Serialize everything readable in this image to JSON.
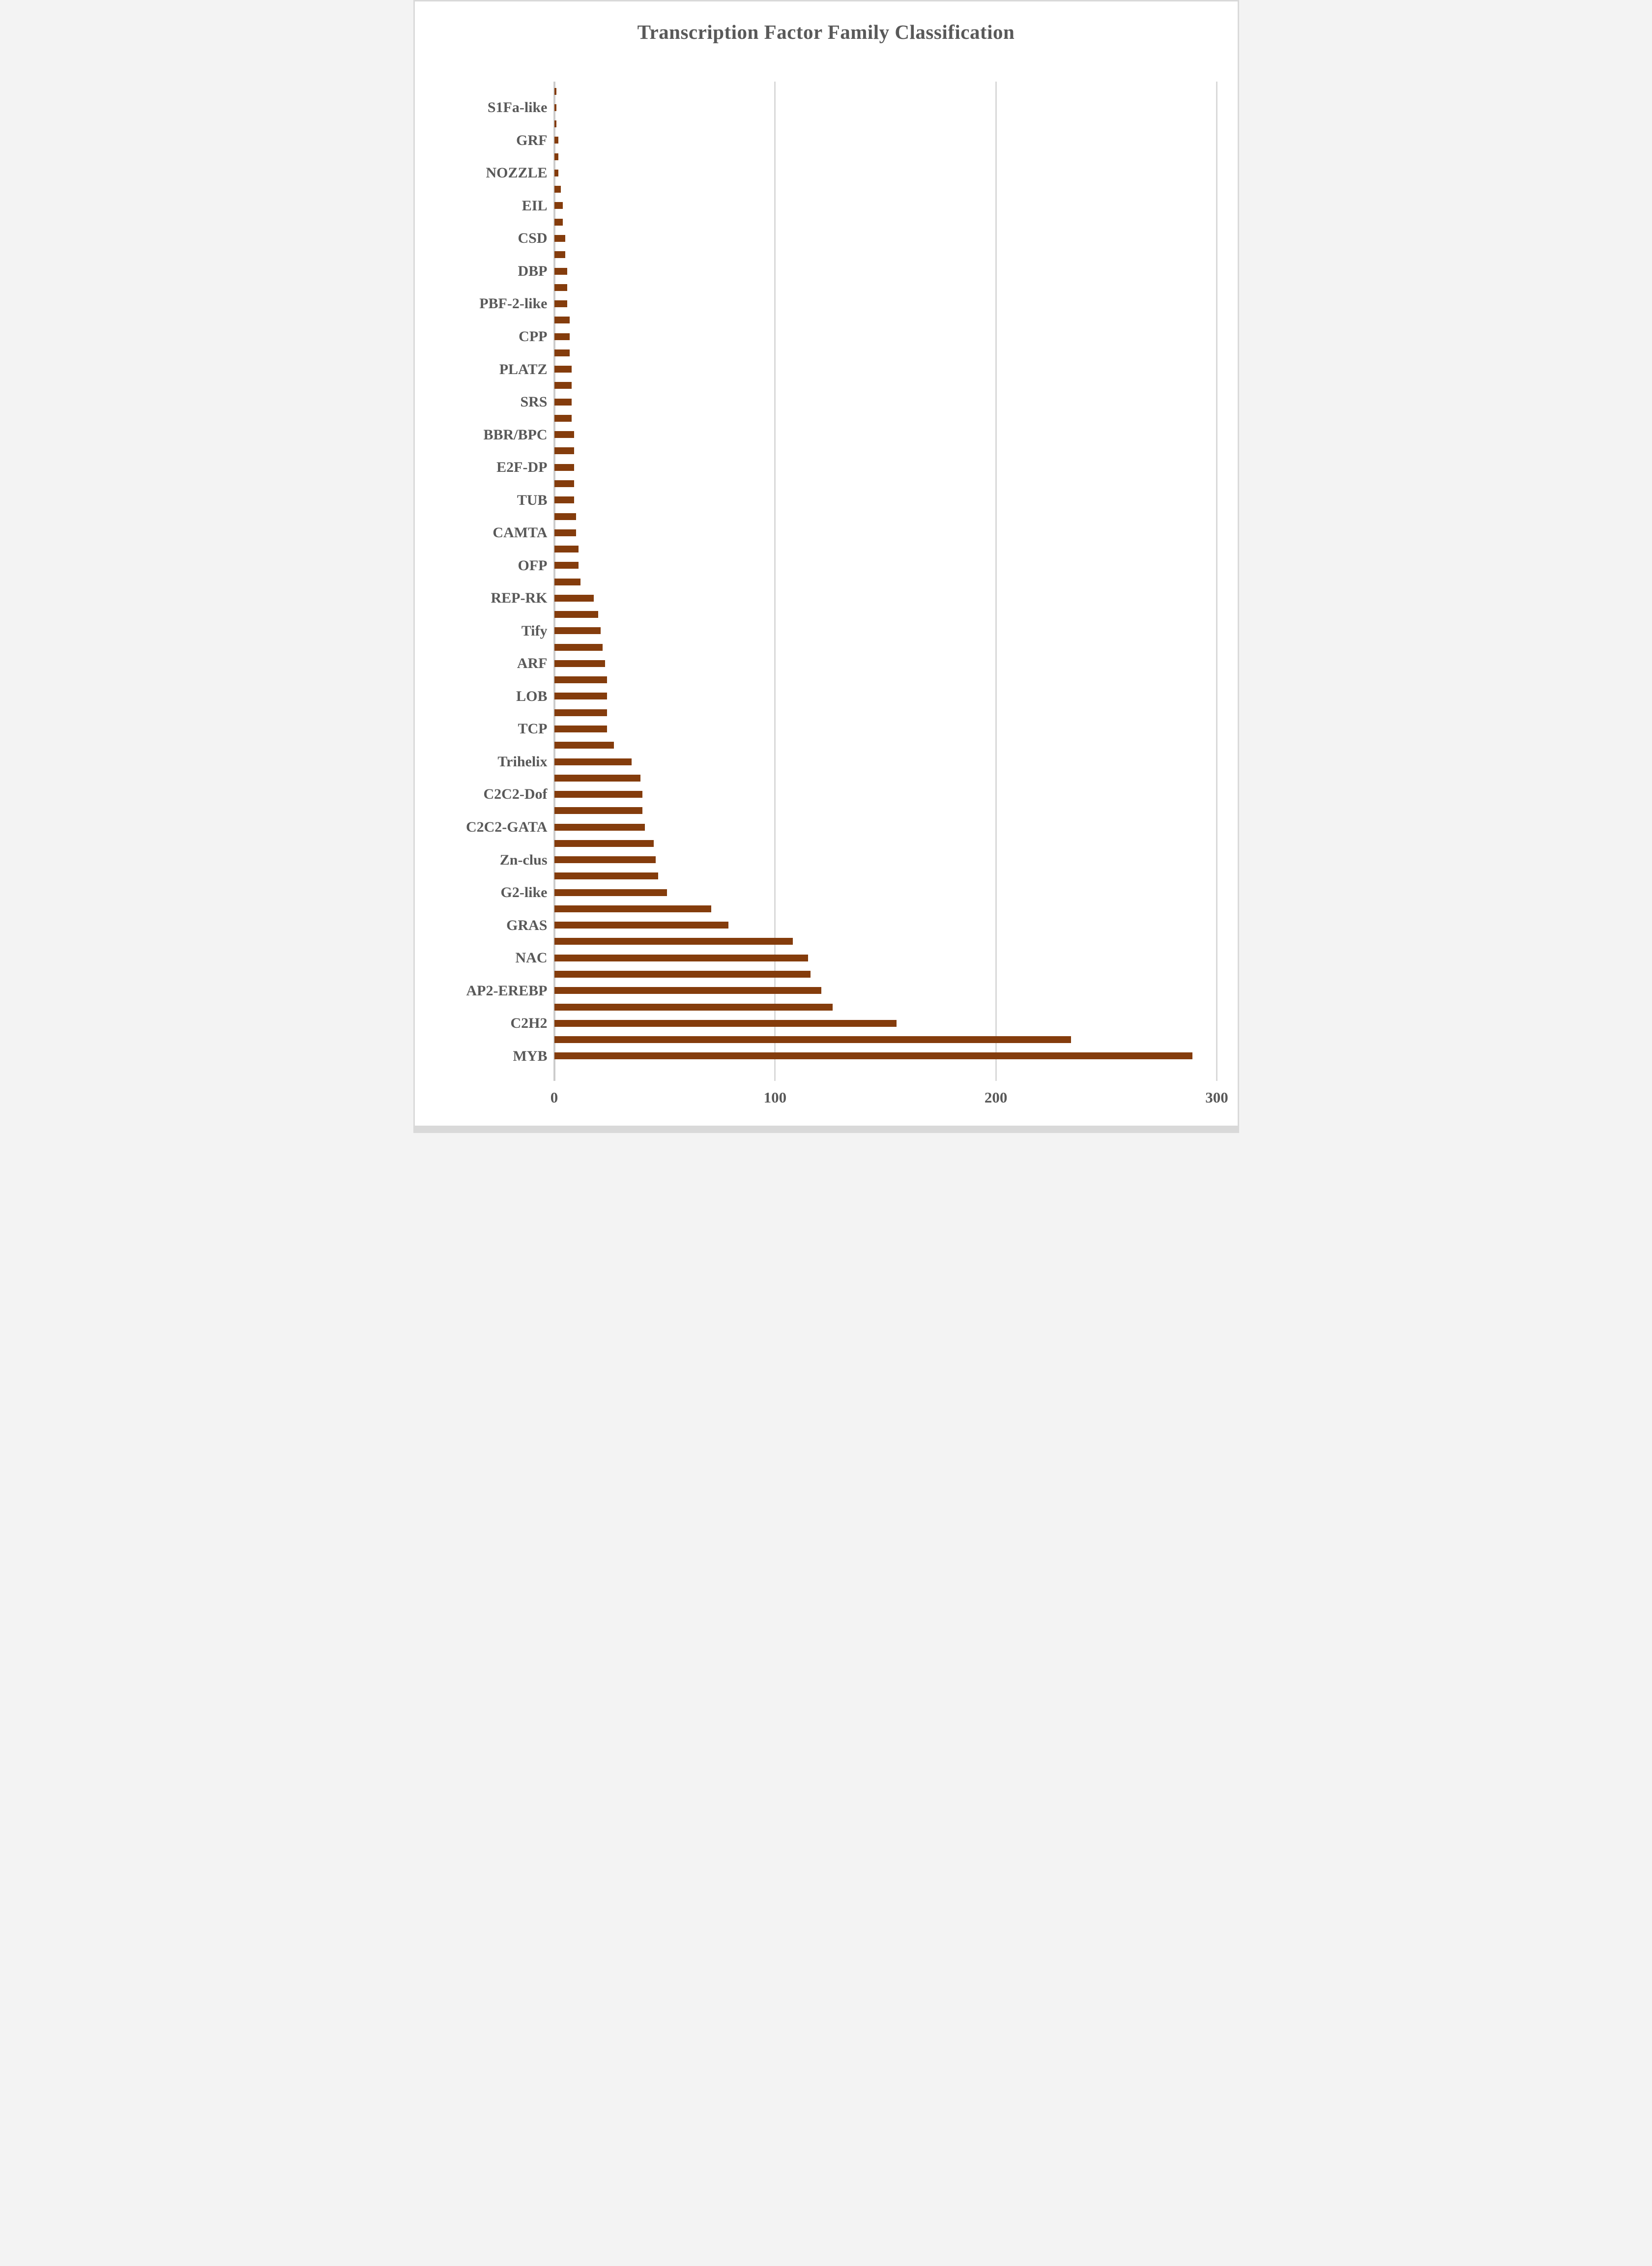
{
  "chart_data": {
    "type": "bar",
    "orientation": "horizontal",
    "title": "Transcription Factor Family Classification",
    "xlabel": "",
    "ylabel": "",
    "xlim": [
      0,
      300
    ],
    "x_ticks": [
      "0",
      "100",
      "200",
      "300"
    ],
    "grid": "vertical-gridlines-at-ticks",
    "legend": "none",
    "category_label_interval": 2,
    "sort": "ascending-top-to-bottom",
    "bar_color": "#843C0C",
    "text_color": "#595959",
    "gridline_color": "#D9D9D9",
    "rows": [
      {
        "label": "",
        "value": 1
      },
      {
        "label": "S1Fa-like",
        "value": 1
      },
      {
        "label": "",
        "value": 1
      },
      {
        "label": "GRF",
        "value": 2
      },
      {
        "label": "",
        "value": 2
      },
      {
        "label": "NOZZLE",
        "value": 2
      },
      {
        "label": "",
        "value": 3
      },
      {
        "label": "EIL",
        "value": 4
      },
      {
        "label": "",
        "value": 4
      },
      {
        "label": "CSD",
        "value": 5
      },
      {
        "label": "",
        "value": 5
      },
      {
        "label": "DBP",
        "value": 6
      },
      {
        "label": "",
        "value": 6
      },
      {
        "label": "PBF-2-like",
        "value": 6
      },
      {
        "label": "",
        "value": 7
      },
      {
        "label": "CPP",
        "value": 7
      },
      {
        "label": "",
        "value": 7
      },
      {
        "label": "PLATZ",
        "value": 8
      },
      {
        "label": "",
        "value": 8
      },
      {
        "label": "SRS",
        "value": 8
      },
      {
        "label": "",
        "value": 8
      },
      {
        "label": "BBR/BPC",
        "value": 9
      },
      {
        "label": "",
        "value": 9
      },
      {
        "label": "E2F-DP",
        "value": 9
      },
      {
        "label": "",
        "value": 9
      },
      {
        "label": "TUB",
        "value": 9
      },
      {
        "label": "",
        "value": 10
      },
      {
        "label": "CAMTA",
        "value": 10
      },
      {
        "label": "",
        "value": 11
      },
      {
        "label": "OFP",
        "value": 11
      },
      {
        "label": "",
        "value": 12
      },
      {
        "label": "REP-RK",
        "value": 18
      },
      {
        "label": "",
        "value": 20
      },
      {
        "label": "Tify",
        "value": 21
      },
      {
        "label": "",
        "value": 22
      },
      {
        "label": "ARF",
        "value": 23
      },
      {
        "label": "",
        "value": 24
      },
      {
        "label": "LOB",
        "value": 24
      },
      {
        "label": "",
        "value": 24
      },
      {
        "label": "TCP",
        "value": 24
      },
      {
        "label": "",
        "value": 27
      },
      {
        "label": "Trihelix",
        "value": 35
      },
      {
        "label": "",
        "value": 39
      },
      {
        "label": "C2C2-Dof",
        "value": 40
      },
      {
        "label": "",
        "value": 40
      },
      {
        "label": "C2C2-GATA",
        "value": 41
      },
      {
        "label": "",
        "value": 45
      },
      {
        "label": "Zn-clus",
        "value": 46
      },
      {
        "label": "",
        "value": 47
      },
      {
        "label": "G2-like",
        "value": 51
      },
      {
        "label": "",
        "value": 71
      },
      {
        "label": "GRAS",
        "value": 79
      },
      {
        "label": "",
        "value": 108
      },
      {
        "label": "NAC",
        "value": 115
      },
      {
        "label": "",
        "value": 116
      },
      {
        "label": "AP2-EREBP",
        "value": 121
      },
      {
        "label": "",
        "value": 126
      },
      {
        "label": "C2H2",
        "value": 155
      },
      {
        "label": "",
        "value": 234
      },
      {
        "label": "MYB",
        "value": 289
      }
    ]
  }
}
